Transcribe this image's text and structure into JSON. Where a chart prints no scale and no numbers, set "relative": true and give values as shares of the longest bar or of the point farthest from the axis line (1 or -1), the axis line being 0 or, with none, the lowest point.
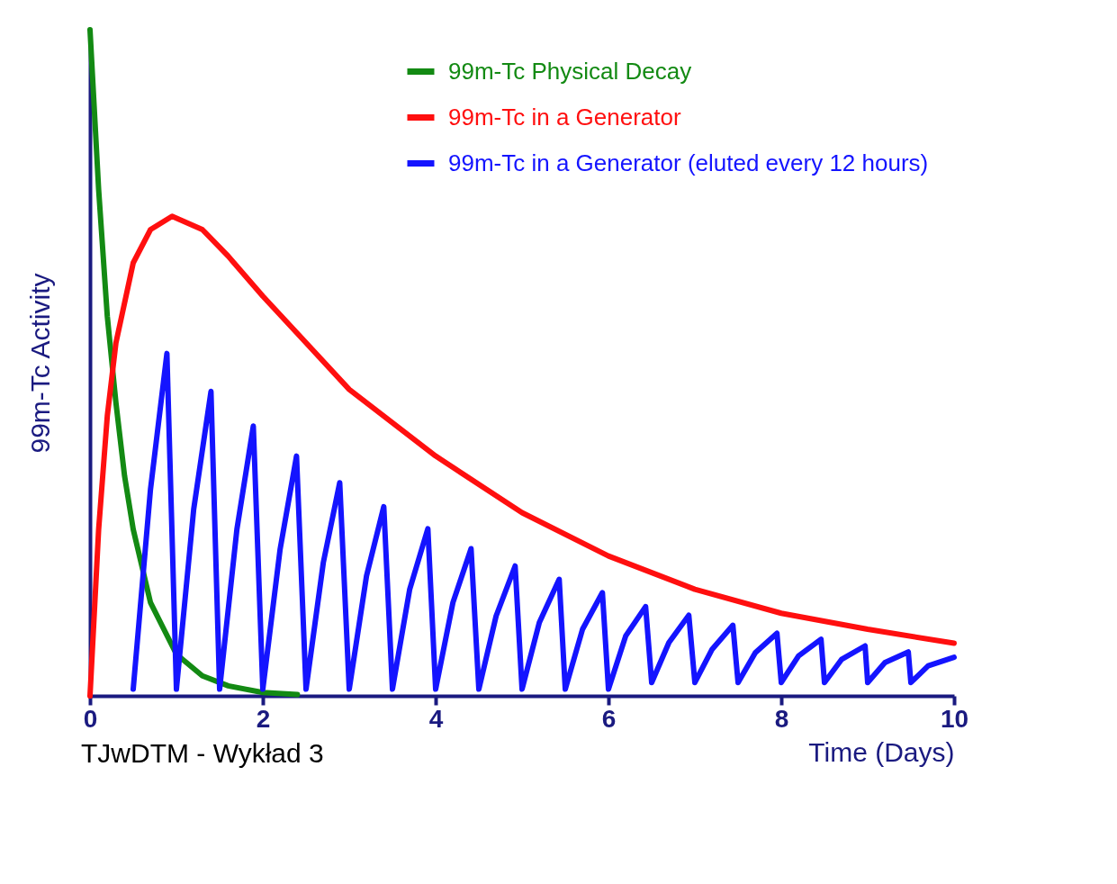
{
  "chart_data": {
    "type": "line",
    "relative": true,
    "xlabel": "Time (Days)",
    "ylabel": "99m-Tc Activity",
    "xlim": [
      0,
      10
    ],
    "xticks": [
      0,
      2,
      4,
      6,
      8,
      10
    ],
    "legend": "top right",
    "annotations": [
      "TJwDTM  - Wykład 3"
    ],
    "series": [
      {
        "name": "99m-Tc Physical Decay",
        "color": "#138a13",
        "x": [
          0,
          0.1,
          0.2,
          0.3,
          0.4,
          0.5,
          0.7,
          1.0,
          1.3,
          1.6,
          2.0,
          2.4
        ],
        "values": [
          1,
          0.76,
          0.57,
          0.44,
          0.33,
          0.25,
          0.14,
          0.0625,
          0.03,
          0.015,
          0.005,
          0.002
        ]
      },
      {
        "name": "99m-Tc in a Generator",
        "color": "#ff0f0f",
        "x": [
          0,
          0.1,
          0.2,
          0.3,
          0.5,
          0.7,
          0.95,
          1.3,
          1.6,
          2,
          2.5,
          3,
          3.5,
          4,
          5,
          6,
          7,
          8,
          9,
          10
        ],
        "values": [
          0,
          0.25,
          0.42,
          0.53,
          0.65,
          0.7,
          0.72,
          0.7,
          0.66,
          0.6,
          0.53,
          0.46,
          0.41,
          0.36,
          0.275,
          0.21,
          0.16,
          0.124,
          0.1,
          0.079
        ]
      },
      {
        "name": "99m-Tc in a Generator (eluted every 12 hours)",
        "color": "#1414ff",
        "x": [
          0.5,
          0.7,
          0.89,
          1.0,
          1.2,
          1.4,
          1.5,
          1.7,
          1.89,
          2.0,
          2.2,
          2.39,
          2.5,
          2.7,
          2.89,
          3.0,
          3.2,
          3.4,
          3.5,
          3.7,
          3.91,
          4.0,
          4.2,
          4.41,
          4.5,
          4.7,
          4.92,
          5.0,
          5.2,
          5.43,
          5.5,
          5.7,
          5.93,
          6.0,
          6.2,
          6.43,
          6.5,
          6.7,
          6.93,
          7.0,
          7.2,
          7.44,
          7.5,
          7.7,
          7.95,
          8.0,
          8.2,
          8.46,
          8.5,
          8.7,
          8.97,
          9.0,
          9.2,
          9.47,
          9.5,
          9.7,
          10
        ],
        "values": [
          0.01,
          0.31,
          0.514,
          0.01,
          0.28,
          0.457,
          0.01,
          0.25,
          0.405,
          0.01,
          0.22,
          0.36,
          0.01,
          0.2,
          0.32,
          0.01,
          0.18,
          0.284,
          0.01,
          0.16,
          0.251,
          0.01,
          0.14,
          0.221,
          0.01,
          0.12,
          0.195,
          0.01,
          0.11,
          0.175,
          0.01,
          0.1,
          0.155,
          0.01,
          0.09,
          0.134,
          0.02,
          0.08,
          0.121,
          0.02,
          0.07,
          0.106,
          0.02,
          0.065,
          0.094,
          0.02,
          0.06,
          0.085,
          0.02,
          0.055,
          0.075,
          0.02,
          0.05,
          0.066,
          0.02,
          0.045,
          0.058
        ]
      }
    ]
  }
}
